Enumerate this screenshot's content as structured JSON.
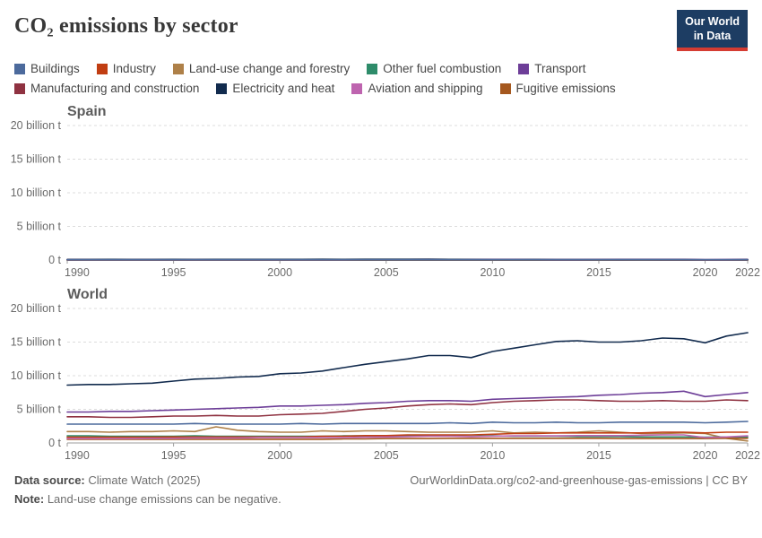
{
  "header": {
    "title": "CO₂ emissions by sector",
    "logo_line1": "Our World",
    "logo_line2": "in Data"
  },
  "colors": {
    "logo_bg": "#1D3D63",
    "logo_stripe": "#D53C32",
    "grid": "#DCDCDC",
    "axis": "#9E9E9E"
  },
  "legend": {
    "rows": [
      [
        {
          "label": "Buildings",
          "color": "#4C6A9C"
        },
        {
          "label": "Industry",
          "color": "#C13E12"
        },
        {
          "label": "Land-use change and forestry",
          "color": "#AE8048"
        },
        {
          "label": "Other fuel combustion",
          "color": "#2E8C6A"
        },
        {
          "label": "Transport",
          "color": "#6D3E98"
        }
      ],
      [
        {
          "label": "Manufacturing and construction",
          "color": "#8F3241"
        },
        {
          "label": "Electricity and heat",
          "color": "#122B4E"
        },
        {
          "label": "Aviation and shipping",
          "color": "#BE64AF"
        },
        {
          "label": "Fugitive emissions",
          "color": "#A5581F"
        }
      ]
    ]
  },
  "chart_data": [
    {
      "type": "line",
      "title": "Spain",
      "unit": "billion t",
      "ylim": [
        0,
        20
      ],
      "ytick_values": [
        0,
        5,
        10,
        15,
        20
      ],
      "ytick_labels": [
        "0 t",
        "5 billion t",
        "10 billion t",
        "15 billion t",
        "20 billion t"
      ],
      "xticks": [
        1990,
        1995,
        2000,
        2005,
        2010,
        2015,
        2020,
        2022
      ],
      "grid": true,
      "x": [
        1990,
        1991,
        1992,
        1993,
        1994,
        1995,
        1996,
        1997,
        1998,
        1999,
        2000,
        2001,
        2002,
        2003,
        2004,
        2005,
        2006,
        2007,
        2008,
        2009,
        2010,
        2011,
        2012,
        2013,
        2014,
        2015,
        2016,
        2017,
        2018,
        2019,
        2020,
        2021,
        2022
      ],
      "series": [
        {
          "name": "Land-use change and forestry",
          "color": "#AE8048",
          "values": [
            -0.03,
            -0.03,
            -0.03,
            -0.03,
            -0.03,
            -0.03,
            -0.03,
            -0.03,
            -0.03,
            -0.03,
            -0.03,
            -0.03,
            -0.03,
            -0.03,
            -0.03,
            -0.03,
            -0.03,
            -0.03,
            -0.03,
            -0.03,
            -0.03,
            -0.03,
            -0.03,
            -0.03,
            -0.03,
            -0.03,
            -0.03,
            -0.03,
            -0.03,
            -0.03,
            -0.03,
            -0.03,
            -0.03
          ]
        },
        {
          "name": "Other fuel combustion",
          "color": "#2E8C6A",
          "values": [
            0.01,
            0.01,
            0.01,
            0.01,
            0.01,
            0.01,
            0.01,
            0.01,
            0.01,
            0.01,
            0.01,
            0.01,
            0.01,
            0.01,
            0.01,
            0.01,
            0.01,
            0.01,
            0.01,
            0.01,
            0.01,
            0.01,
            0.01,
            0.01,
            0.01,
            0.01,
            0.01,
            0.01,
            0.01,
            0.01,
            0.01,
            0.01,
            0.01
          ]
        },
        {
          "name": "Fugitive emissions",
          "color": "#A5581F",
          "values": [
            0.005,
            0.005,
            0.005,
            0.005,
            0.005,
            0.005,
            0.005,
            0.005,
            0.005,
            0.005,
            0.005,
            0.005,
            0.005,
            0.005,
            0.005,
            0.005,
            0.005,
            0.005,
            0.005,
            0.005,
            0.005,
            0.005,
            0.005,
            0.005,
            0.005,
            0.005,
            0.005,
            0.005,
            0.005,
            0.005,
            0.005,
            0.005,
            0.005
          ]
        },
        {
          "name": "Industry",
          "color": "#C13E12",
          "values": [
            0.02,
            0.02,
            0.02,
            0.02,
            0.02,
            0.02,
            0.02,
            0.02,
            0.02,
            0.02,
            0.02,
            0.02,
            0.02,
            0.02,
            0.02,
            0.02,
            0.02,
            0.02,
            0.02,
            0.02,
            0.02,
            0.02,
            0.02,
            0.02,
            0.02,
            0.02,
            0.02,
            0.02,
            0.02,
            0.02,
            0.02,
            0.02,
            0.02
          ]
        },
        {
          "name": "Aviation and shipping",
          "color": "#BE64AF",
          "values": [
            0.02,
            0.02,
            0.02,
            0.02,
            0.02,
            0.03,
            0.03,
            0.03,
            0.03,
            0.03,
            0.03,
            0.03,
            0.03,
            0.03,
            0.04,
            0.04,
            0.04,
            0.04,
            0.04,
            0.04,
            0.04,
            0.04,
            0.04,
            0.03,
            0.03,
            0.04,
            0.04,
            0.04,
            0.04,
            0.04,
            0.02,
            0.03,
            0.04
          ]
        },
        {
          "name": "Manufacturing and construction",
          "color": "#8F3241",
          "values": [
            0.05,
            0.05,
            0.05,
            0.04,
            0.05,
            0.05,
            0.05,
            0.05,
            0.05,
            0.05,
            0.06,
            0.06,
            0.06,
            0.06,
            0.06,
            0.06,
            0.06,
            0.06,
            0.05,
            0.04,
            0.04,
            0.04,
            0.04,
            0.03,
            0.03,
            0.04,
            0.03,
            0.04,
            0.03,
            0.03,
            0.03,
            0.03,
            0.03
          ]
        },
        {
          "name": "Transport",
          "color": "#6D3E98",
          "values": [
            0.06,
            0.06,
            0.07,
            0.06,
            0.07,
            0.07,
            0.07,
            0.07,
            0.08,
            0.08,
            0.09,
            0.09,
            0.09,
            0.09,
            0.1,
            0.1,
            0.1,
            0.11,
            0.1,
            0.09,
            0.09,
            0.09,
            0.08,
            0.08,
            0.08,
            0.08,
            0.09,
            0.09,
            0.09,
            0.09,
            0.07,
            0.08,
            0.09
          ]
        },
        {
          "name": "Electricity and heat",
          "color": "#122B4E",
          "values": [
            0.08,
            0.08,
            0.09,
            0.08,
            0.08,
            0.09,
            0.08,
            0.09,
            0.09,
            0.1,
            0.1,
            0.1,
            0.11,
            0.1,
            0.11,
            0.11,
            0.11,
            0.11,
            0.1,
            0.08,
            0.06,
            0.07,
            0.08,
            0.06,
            0.06,
            0.07,
            0.06,
            0.07,
            0.06,
            0.05,
            0.04,
            0.04,
            0.05
          ]
        },
        {
          "name": "Buildings",
          "color": "#4C6A9C",
          "values": [
            0.02,
            0.02,
            0.02,
            0.02,
            0.02,
            0.02,
            0.02,
            0.02,
            0.02,
            0.02,
            0.02,
            0.02,
            0.02,
            0.02,
            0.02,
            0.02,
            0.02,
            0.02,
            0.02,
            0.02,
            0.02,
            0.02,
            0.02,
            0.02,
            0.02,
            0.02,
            0.02,
            0.02,
            0.02,
            0.02,
            0.02,
            0.02,
            0.02
          ]
        }
      ]
    },
    {
      "type": "line",
      "title": "World",
      "unit": "billion t",
      "ylim": [
        0,
        20
      ],
      "ytick_values": [
        0,
        5,
        10,
        15,
        20
      ],
      "ytick_labels": [
        "0 t",
        "5 billion t",
        "10 billion t",
        "15 billion t",
        "20 billion t"
      ],
      "xticks": [
        1990,
        1995,
        2000,
        2005,
        2010,
        2015,
        2020,
        2022
      ],
      "grid": true,
      "x": [
        1990,
        1991,
        1992,
        1993,
        1994,
        1995,
        1996,
        1997,
        1998,
        1999,
        2000,
        2001,
        2002,
        2003,
        2004,
        2005,
        2006,
        2007,
        2008,
        2009,
        2010,
        2011,
        2012,
        2013,
        2014,
        2015,
        2016,
        2017,
        2018,
        2019,
        2020,
        2021,
        2022
      ],
      "series": [
        {
          "name": "Land-use change and forestry",
          "color": "#AE8048",
          "values": [
            1.7,
            1.7,
            1.6,
            1.7,
            1.7,
            1.8,
            1.7,
            2.4,
            1.9,
            1.7,
            1.6,
            1.6,
            1.8,
            1.7,
            1.8,
            1.8,
            1.7,
            1.6,
            1.6,
            1.6,
            1.8,
            1.5,
            1.6,
            1.5,
            1.6,
            1.8,
            1.6,
            1.4,
            1.4,
            1.5,
            1.4,
            0.7,
            0.3
          ]
        },
        {
          "name": "Other fuel combustion",
          "color": "#2E8C6A",
          "values": [
            1.05,
            1.05,
            1.0,
            1.0,
            1.0,
            1.0,
            1.05,
            1.0,
            1.0,
            1.0,
            1.0,
            1.0,
            1.0,
            1.05,
            1.05,
            1.05,
            1.05,
            1.05,
            1.05,
            1.0,
            1.05,
            1.0,
            1.0,
            1.0,
            0.95,
            0.95,
            0.95,
            0.9,
            0.9,
            0.9,
            0.85,
            0.9,
            0.9
          ]
        },
        {
          "name": "Fugitive emissions",
          "color": "#A5581F",
          "values": [
            0.55,
            0.55,
            0.55,
            0.55,
            0.55,
            0.55,
            0.55,
            0.55,
            0.55,
            0.55,
            0.55,
            0.55,
            0.55,
            0.6,
            0.6,
            0.65,
            0.65,
            0.65,
            0.7,
            0.7,
            0.7,
            0.7,
            0.7,
            0.7,
            0.7,
            0.7,
            0.65,
            0.65,
            0.65,
            0.65,
            0.65,
            0.7,
            0.7
          ]
        },
        {
          "name": "Industry",
          "color": "#C13E12",
          "values": [
            0.85,
            0.85,
            0.85,
            0.85,
            0.85,
            0.9,
            0.9,
            0.9,
            0.9,
            0.9,
            0.9,
            0.9,
            1.0,
            1.0,
            1.1,
            1.1,
            1.2,
            1.2,
            1.2,
            1.2,
            1.3,
            1.4,
            1.4,
            1.5,
            1.5,
            1.5,
            1.5,
            1.5,
            1.6,
            1.6,
            1.5,
            1.6,
            1.6
          ]
        },
        {
          "name": "Aviation and shipping",
          "color": "#BE64AF",
          "values": [
            0.65,
            0.65,
            0.65,
            0.65,
            0.7,
            0.7,
            0.75,
            0.75,
            0.75,
            0.8,
            0.8,
            0.8,
            0.8,
            0.8,
            0.85,
            0.9,
            0.95,
            1.0,
            1.0,
            0.95,
            1.0,
            1.05,
            1.05,
            1.05,
            1.1,
            1.1,
            1.1,
            1.15,
            1.2,
            1.2,
            0.8,
            0.9,
            1.05
          ]
        },
        {
          "name": "Manufacturing and construction",
          "color": "#8F3241",
          "values": [
            3.9,
            3.9,
            3.8,
            3.8,
            3.9,
            4.0,
            4.0,
            4.1,
            4.0,
            4.0,
            4.2,
            4.3,
            4.4,
            4.7,
            5.0,
            5.2,
            5.5,
            5.7,
            5.8,
            5.7,
            6.0,
            6.2,
            6.3,
            6.4,
            6.4,
            6.3,
            6.2,
            6.2,
            6.3,
            6.2,
            6.2,
            6.4,
            6.3
          ]
        },
        {
          "name": "Transport",
          "color": "#6D3E98",
          "values": [
            4.6,
            4.6,
            4.7,
            4.7,
            4.8,
            4.9,
            5.0,
            5.1,
            5.2,
            5.3,
            5.5,
            5.5,
            5.6,
            5.7,
            5.9,
            6.0,
            6.2,
            6.3,
            6.3,
            6.2,
            6.5,
            6.6,
            6.7,
            6.8,
            6.9,
            7.1,
            7.2,
            7.4,
            7.5,
            7.7,
            6.9,
            7.2,
            7.5
          ]
        },
        {
          "name": "Electricity and heat",
          "color": "#122B4E",
          "values": [
            8.6,
            8.7,
            8.7,
            8.8,
            8.9,
            9.2,
            9.5,
            9.6,
            9.8,
            9.9,
            10.3,
            10.4,
            10.7,
            11.2,
            11.7,
            12.1,
            12.5,
            13.0,
            13.0,
            12.7,
            13.6,
            14.1,
            14.6,
            15.1,
            15.2,
            15.0,
            15.0,
            15.2,
            15.6,
            15.5,
            14.9,
            15.9,
            16.4
          ]
        },
        {
          "name": "Buildings",
          "color": "#4C6A9C",
          "values": [
            2.8,
            2.8,
            2.8,
            2.8,
            2.8,
            2.8,
            2.9,
            2.8,
            2.8,
            2.8,
            2.8,
            2.9,
            2.8,
            2.9,
            2.9,
            2.9,
            2.9,
            2.9,
            3.0,
            2.9,
            3.1,
            3.0,
            3.0,
            3.1,
            3.0,
            3.0,
            3.1,
            3.1,
            3.1,
            3.1,
            3.0,
            3.1,
            3.2
          ]
        }
      ]
    }
  ],
  "footer": {
    "source_label": "Data source:",
    "source_value": " Climate Watch (2025)",
    "link": "OurWorldinData.org/co2-and-greenhouse-gas-emissions | CC BY",
    "note_label": "Note:",
    "note_value": " Land-use change emissions can be negative."
  }
}
